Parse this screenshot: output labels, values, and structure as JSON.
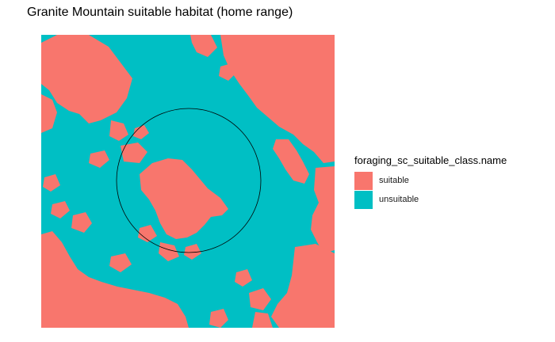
{
  "title": "Granite Mountain suitable habitat (home range)",
  "legend": {
    "title": "foraging_sc_suitable_class.name",
    "items": [
      {
        "label": "suitable",
        "color": "#F8766D"
      },
      {
        "label": "unsuitable",
        "color": "#00BFC4"
      }
    ]
  },
  "map": {
    "background_class": "unsuitable",
    "home_range_outline": "circle",
    "outline_color": "#000000"
  }
}
